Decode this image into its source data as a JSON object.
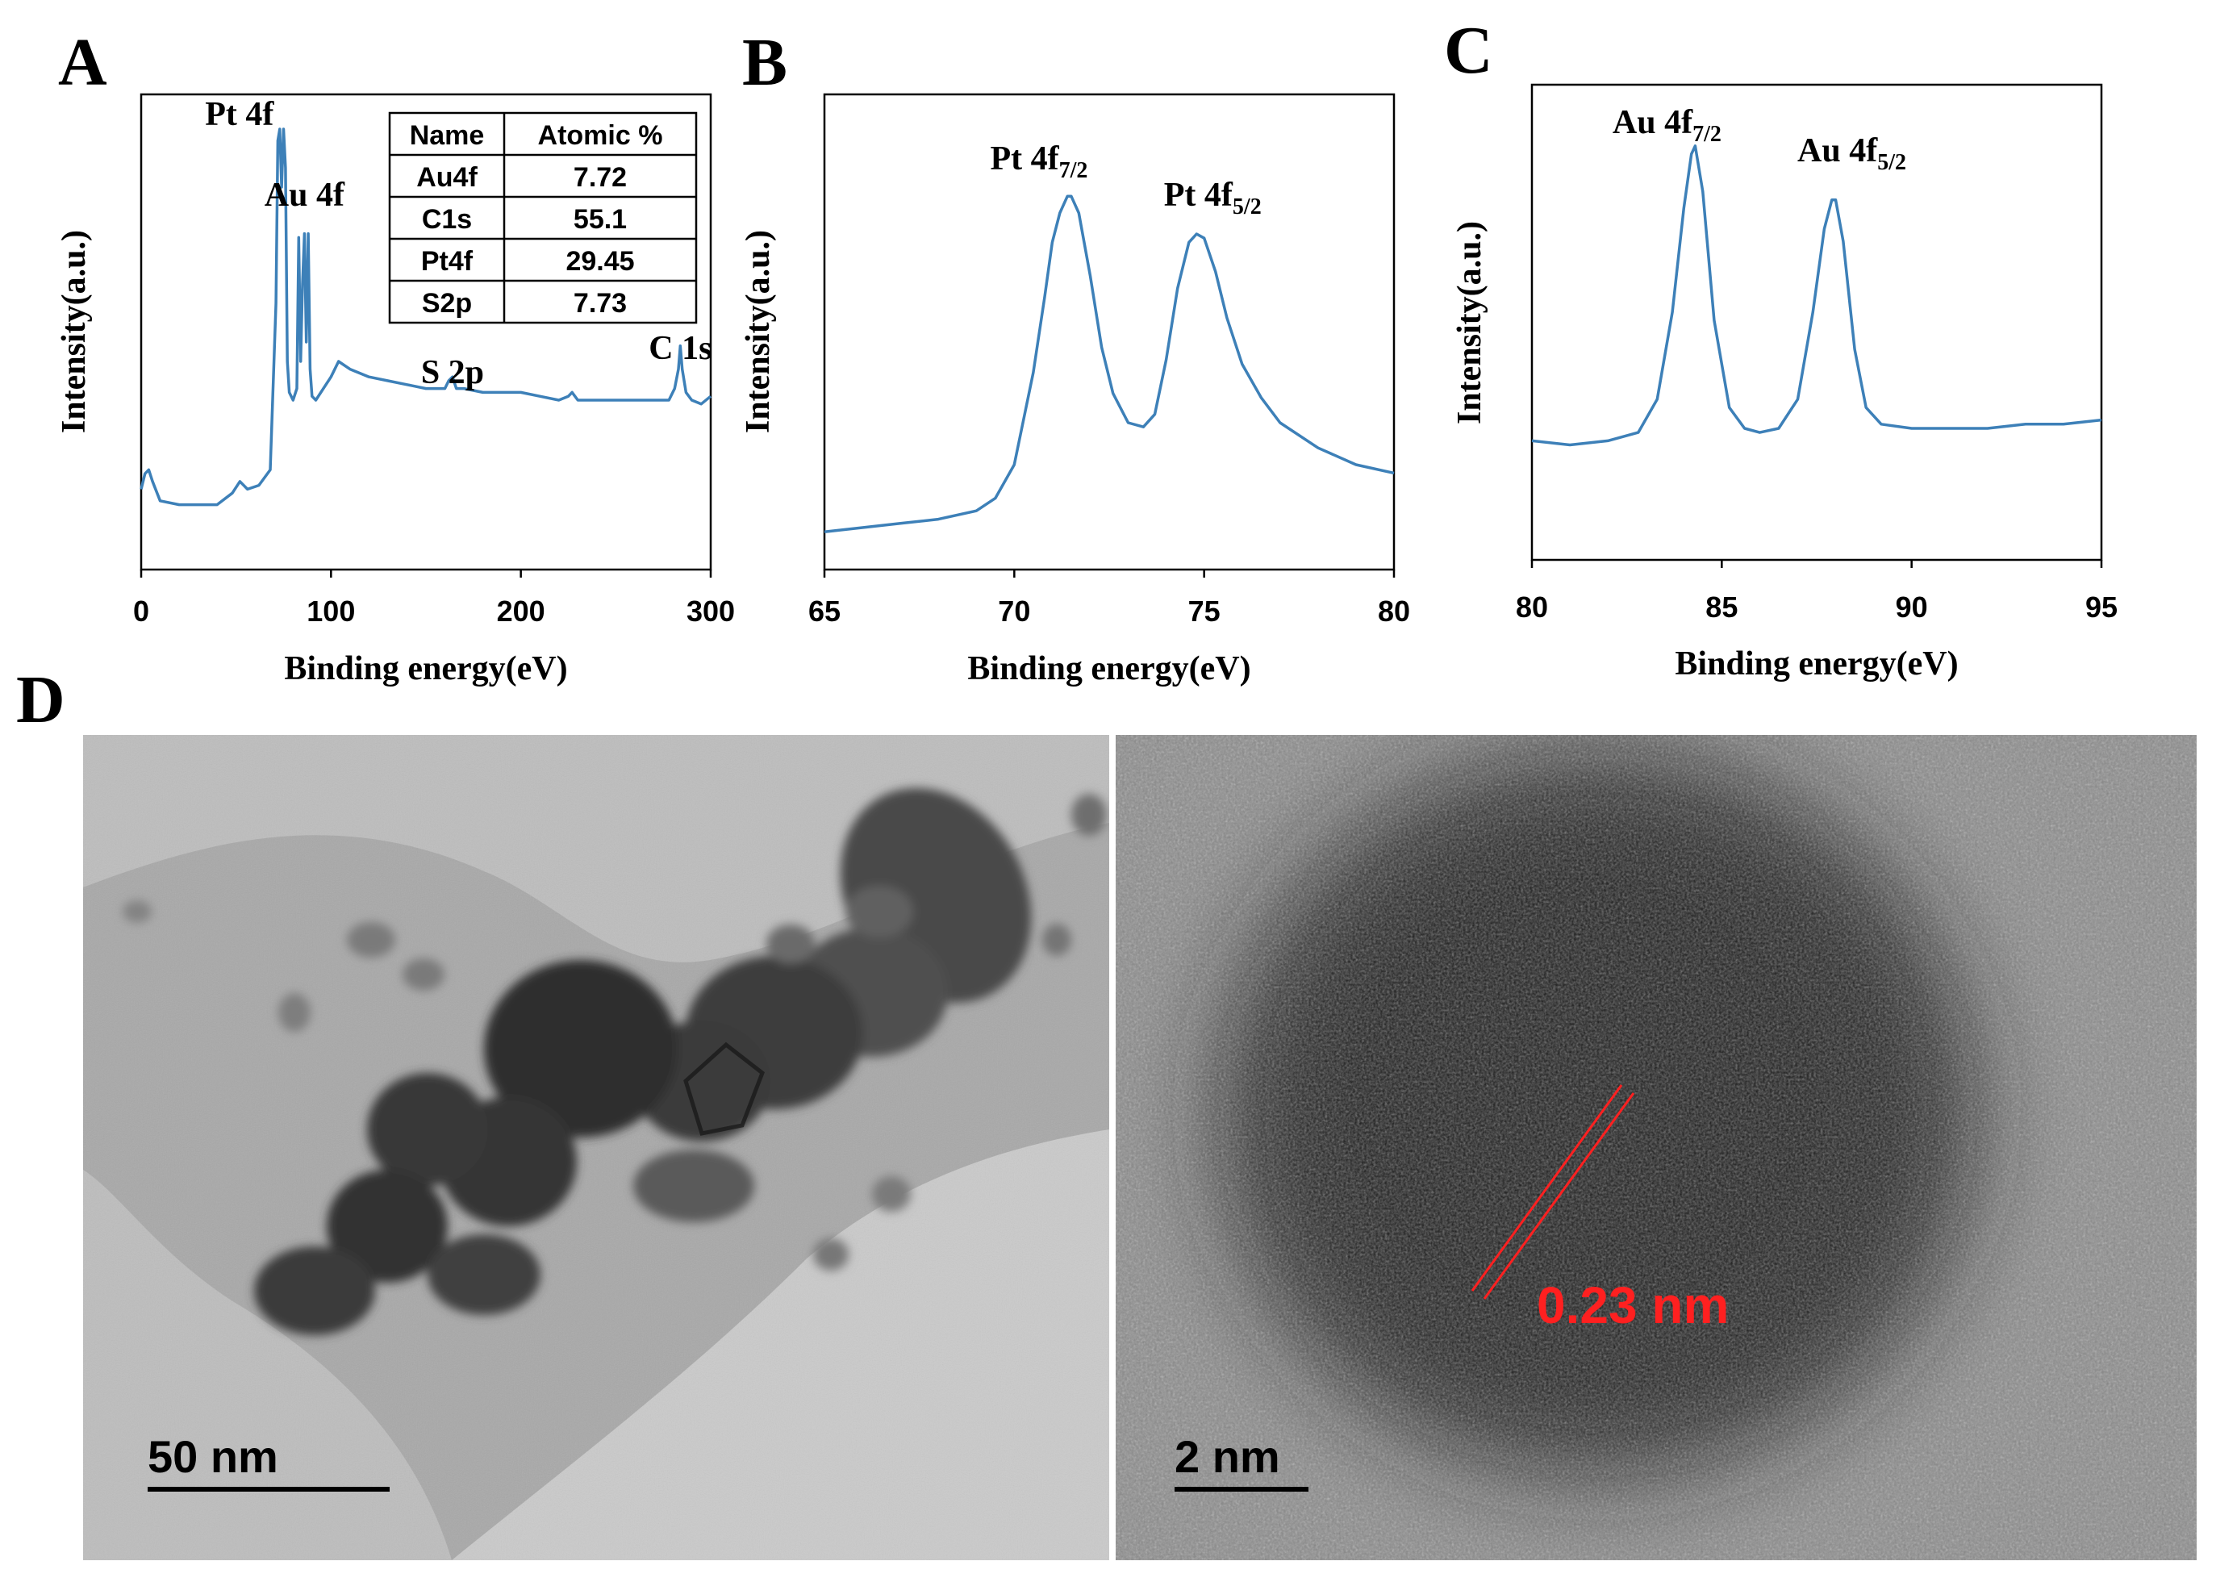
{
  "chart_data": [
    {
      "panel": "A",
      "type": "line",
      "xlabel": "Binding energy(eV)",
      "ylabel": "Intensity(a.u.)",
      "xlim": [
        0,
        300
      ],
      "ylim": [
        0,
        1
      ],
      "xticks": [
        "0",
        "100",
        "200",
        "300"
      ],
      "x": [
        0,
        2,
        4,
        6,
        10,
        20,
        40,
        48,
        52,
        56,
        62,
        68,
        71,
        72,
        73,
        74,
        75,
        76,
        77,
        78,
        80,
        82,
        83,
        84,
        85,
        86,
        87,
        88,
        89,
        90,
        92,
        96,
        100,
        104,
        110,
        120,
        130,
        140,
        150,
        160,
        162,
        164,
        166,
        170,
        180,
        190,
        200,
        210,
        220,
        225,
        227,
        230,
        240,
        250,
        260,
        270,
        278,
        281,
        283,
        284,
        285,
        287,
        290,
        295,
        300
      ],
      "y": [
        0.07,
        0.11,
        0.12,
        0.09,
        0.04,
        0.03,
        0.03,
        0.06,
        0.09,
        0.07,
        0.08,
        0.12,
        0.55,
        0.97,
        1.0,
        0.85,
        1.0,
        0.9,
        0.4,
        0.32,
        0.3,
        0.33,
        0.72,
        0.4,
        0.6,
        0.73,
        0.45,
        0.73,
        0.38,
        0.31,
        0.3,
        0.33,
        0.36,
        0.4,
        0.38,
        0.36,
        0.35,
        0.34,
        0.33,
        0.33,
        0.35,
        0.36,
        0.33,
        0.33,
        0.32,
        0.32,
        0.32,
        0.31,
        0.3,
        0.31,
        0.32,
        0.3,
        0.3,
        0.3,
        0.3,
        0.3,
        0.3,
        0.33,
        0.38,
        0.44,
        0.38,
        0.32,
        0.3,
        0.29,
        0.31
      ],
      "annotations": [
        {
          "text": "Pt 4f",
          "x": 73
        },
        {
          "text": "Au 4f",
          "x": 86
        },
        {
          "text": "S 2p",
          "x": 164
        },
        {
          "text": "C 1s",
          "x": 284
        }
      ],
      "table": {
        "headers": [
          "Name",
          "Atomic %"
        ],
        "rows": [
          [
            "Au4f",
            "7.72"
          ],
          [
            "C1s",
            "55.1"
          ],
          [
            "Pt4f",
            "29.45"
          ],
          [
            "S2p",
            "7.73"
          ]
        ]
      }
    },
    {
      "panel": "B",
      "type": "line",
      "xlabel": "Binding energy(eV)",
      "ylabel": "Intensity(a.u.)",
      "xlim": [
        65,
        80
      ],
      "ylim": [
        0,
        1
      ],
      "xticks": [
        "65",
        "70",
        "75",
        "80"
      ],
      "x": [
        65,
        66,
        67,
        68,
        69,
        69.5,
        70,
        70.5,
        70.8,
        71,
        71.2,
        71.4,
        71.5,
        71.7,
        72,
        72.3,
        72.6,
        73,
        73.4,
        73.7,
        74,
        74.3,
        74.6,
        74.8,
        75,
        75.3,
        75.6,
        76,
        76.5,
        77,
        78,
        79,
        80
      ],
      "y": [
        0.04,
        0.05,
        0.06,
        0.07,
        0.09,
        0.12,
        0.2,
        0.42,
        0.6,
        0.73,
        0.8,
        0.84,
        0.84,
        0.8,
        0.65,
        0.48,
        0.37,
        0.3,
        0.29,
        0.32,
        0.45,
        0.62,
        0.73,
        0.75,
        0.74,
        0.66,
        0.55,
        0.44,
        0.36,
        0.3,
        0.24,
        0.2,
        0.18
      ],
      "annotations": [
        {
          "text": "Pt 4f",
          "sub": "7/2",
          "x": 71.5
        },
        {
          "text": "Pt 4f",
          "sub": "5/2",
          "x": 74.8
        }
      ]
    },
    {
      "panel": "C",
      "type": "line",
      "xlabel": "Binding energy(eV)",
      "ylabel": "Intensity(a.u.)",
      "xlim": [
        80,
        95
      ],
      "ylim": [
        0,
        1
      ],
      "xticks": [
        "80",
        "85",
        "90",
        "95"
      ],
      "x": [
        80,
        81,
        82,
        82.8,
        83.3,
        83.7,
        84,
        84.2,
        84.3,
        84.5,
        84.8,
        85.2,
        85.6,
        86,
        86.5,
        87,
        87.4,
        87.7,
        87.9,
        88,
        88.2,
        88.5,
        88.8,
        89.2,
        90,
        91,
        92,
        93,
        94,
        95
      ],
      "y": [
        0.24,
        0.23,
        0.24,
        0.26,
        0.34,
        0.55,
        0.8,
        0.93,
        0.95,
        0.84,
        0.53,
        0.32,
        0.27,
        0.26,
        0.27,
        0.34,
        0.55,
        0.75,
        0.82,
        0.82,
        0.72,
        0.46,
        0.32,
        0.28,
        0.27,
        0.27,
        0.27,
        0.28,
        0.28,
        0.29
      ],
      "annotations": [
        {
          "text": "Au 4f",
          "sub": "7/2",
          "x": 84.3
        },
        {
          "text": "Au 4f",
          "sub": "5/2",
          "x": 88.0
        }
      ]
    }
  ],
  "panels": {
    "a": "A",
    "b": "B",
    "c": "C",
    "d": "D"
  },
  "micrographs": {
    "left_scale": "50 nm",
    "right_scale": "2 nm",
    "lattice_spacing": "0.23 nm"
  },
  "colors": {
    "series": "#3d80b8",
    "lattice": "#ff2020"
  }
}
